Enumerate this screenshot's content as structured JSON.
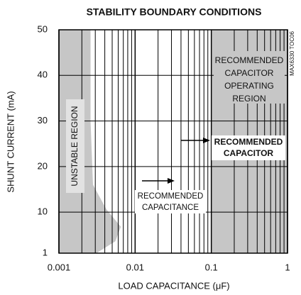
{
  "chart_data": {
    "type": "region",
    "title": "STABILITY BOUNDARY CONDITIONS",
    "xlabel": "LOAD CAPACITANCE (μF)",
    "ylabel": "SHUNT CURRENT (mA)",
    "side_note": "MAX6330 TOC06",
    "xscale": "log",
    "xlim": [
      0.001,
      1
    ],
    "xticks": [
      0.001,
      0.01,
      0.1,
      1
    ],
    "ylim": [
      1,
      50
    ],
    "yticks": [
      1,
      10,
      20,
      30,
      40,
      50
    ],
    "grid": true,
    "region_color": "#c6c6c6",
    "unstable_boundary": {
      "x": [
        0.0026,
        0.0026,
        0.0028,
        0.0042,
        0.0065,
        0.0055,
        0.0031
      ],
      "y": [
        50,
        30,
        16,
        10.6,
        6.8,
        3.6,
        1
      ]
    },
    "recommended_region": {
      "x": [
        0.1,
        1
      ]
    },
    "annotations": [
      {
        "lines": [
          "RECOMMENDED",
          "CAPACITOR",
          "OPERATING",
          "REGION"
        ]
      },
      {
        "lines": [
          "RECOMMENDED",
          "CAPACITOR"
        ]
      },
      {
        "lines": [
          "RECOMMENDED",
          "CAPACITANCE"
        ]
      },
      {
        "lines": [
          "UNSTABLE REGION"
        ]
      }
    ]
  }
}
